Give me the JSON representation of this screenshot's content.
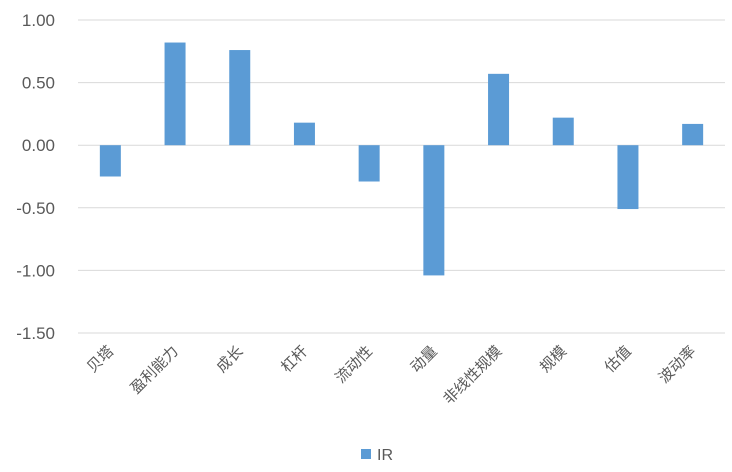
{
  "chart_data": {
    "type": "bar",
    "categories": [
      "贝塔",
      "盈利能力",
      "成长",
      "杠杆",
      "流动性",
      "动量",
      "非线性规模",
      "规模",
      "估值",
      "波动率"
    ],
    "series": [
      {
        "name": "IR",
        "values": [
          -0.25,
          0.82,
          0.76,
          0.18,
          -0.29,
          -1.04,
          0.57,
          0.22,
          -0.51,
          0.17
        ]
      }
    ],
    "ylim": [
      -1.5,
      1.0
    ],
    "yticks": [
      "1.00",
      "0.50",
      "0.00",
      "-0.50",
      "-1.00",
      "-1.50"
    ],
    "grid": true,
    "legend": "bottom",
    "colors": {
      "bar": "#5b9bd5",
      "grid": "#d9d9d9",
      "text": "#595959"
    }
  }
}
